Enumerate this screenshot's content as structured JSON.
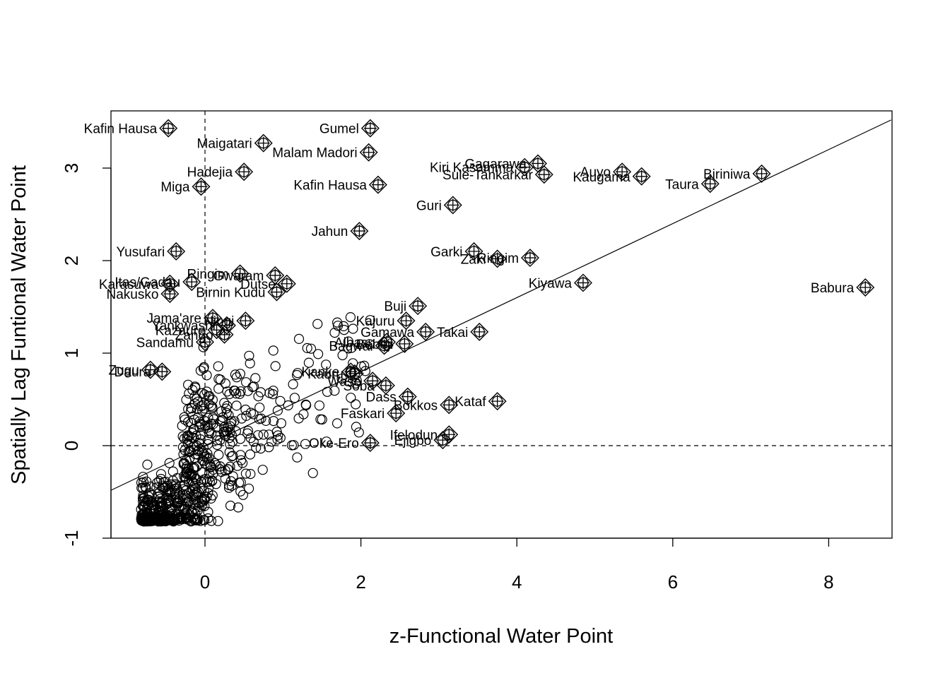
{
  "chart_data": {
    "type": "scatter",
    "title": "",
    "xlabel": "z-Functional Water Point",
    "ylabel": "Spatially Lag Funtional Water Point",
    "xlim": [
      -1.2,
      8.8
    ],
    "ylim": [
      -1.0,
      3.6
    ],
    "xticks": [
      "0",
      "2",
      "4",
      "6",
      "8"
    ],
    "yticks": [
      "-1",
      "0",
      "1",
      "2",
      "3"
    ],
    "reference_lines": {
      "vertical_x": 0,
      "horizontal_y": 0,
      "style": "dashed"
    },
    "regression_line": {
      "intercept": 0.0,
      "slope": 0.4
    },
    "influential_points": [
      {
        "name": "Babura",
        "x": 8.47,
        "y": 1.71
      },
      {
        "name": "Biriniwa",
        "x": 7.14,
        "y": 2.94
      },
      {
        "name": "Taura",
        "x": 6.48,
        "y": 2.83
      },
      {
        "name": "Kaugama",
        "x": 5.6,
        "y": 2.91
      },
      {
        "name": "Auyo",
        "x": 5.35,
        "y": 2.96
      },
      {
        "name": "Kiyawa",
        "x": 4.85,
        "y": 1.76
      },
      {
        "name": "Sule-Tankarkar",
        "x": 4.35,
        "y": 2.93
      },
      {
        "name": "Gagarawa",
        "x": 4.27,
        "y": 3.05
      },
      {
        "name": "Kiri Kasamma",
        "x": 4.1,
        "y": 3.01
      },
      {
        "name": "Ringim",
        "x": 4.17,
        "y": 2.03
      },
      {
        "name": "Zaki",
        "x": 3.75,
        "y": 2.02
      },
      {
        "name": "Garki",
        "x": 3.45,
        "y": 2.1
      },
      {
        "name": "Guri",
        "x": 3.18,
        "y": 2.6
      },
      {
        "name": "Kataf",
        "x": 3.75,
        "y": 0.48
      },
      {
        "name": "Takai",
        "x": 3.52,
        "y": 1.23
      },
      {
        "name": "Gumel",
        "x": 2.12,
        "y": 3.43
      },
      {
        "name": "Malam Madori",
        "x": 2.1,
        "y": 3.17
      },
      {
        "name": "Kafin Hausa",
        "x": 2.22,
        "y": 2.82
      },
      {
        "name": "Jahun",
        "x": 1.98,
        "y": 2.32
      },
      {
        "name": "Buji",
        "x": 2.73,
        "y": 1.51
      },
      {
        "name": "Kajuru",
        "x": 2.58,
        "y": 1.35
      },
      {
        "name": "Gamawa",
        "x": 2.83,
        "y": 1.23
      },
      {
        "name": "Albasu",
        "x": 2.33,
        "y": 1.12
      },
      {
        "name": "Bagwai",
        "x": 2.3,
        "y": 1.08
      },
      {
        "name": "Bebeji",
        "x": 2.56,
        "y": 1.1
      },
      {
        "name": "Kanke",
        "x": 1.87,
        "y": 0.8
      },
      {
        "name": "Kauru",
        "x": 1.92,
        "y": 0.78
      },
      {
        "name": "Wase",
        "x": 2.15,
        "y": 0.7
      },
      {
        "name": "Soba",
        "x": 2.32,
        "y": 0.65
      },
      {
        "name": "Dass",
        "x": 2.6,
        "y": 0.53
      },
      {
        "name": "Bokkos",
        "x": 3.13,
        "y": 0.44
      },
      {
        "name": "Faskari",
        "x": 2.45,
        "y": 0.35
      },
      {
        "name": "Ifelodun",
        "x": 3.13,
        "y": 0.12
      },
      {
        "name": "Ejigbo",
        "x": 3.05,
        "y": 0.06
      },
      {
        "name": "Oke-Ero",
        "x": 2.12,
        "y": 0.03
      },
      {
        "name": "Maigatari",
        "x": 0.75,
        "y": 3.27
      },
      {
        "name": "Hadejia",
        "x": 0.5,
        "y": 2.96
      },
      {
        "name": "Miga",
        "x": -0.05,
        "y": 2.8
      },
      {
        "name": "Birnin Kudu",
        "x": 0.92,
        "y": 1.66
      },
      {
        "name": "Ringim",
        "x": 0.45,
        "y": 1.86
      },
      {
        "name": "Dutse",
        "x": 1.05,
        "y": 1.75
      },
      {
        "name": "Gwaram",
        "x": 0.9,
        "y": 1.84
      },
      {
        "name": "Itas/Gadau",
        "x": -0.17,
        "y": 1.77
      },
      {
        "name": "Ningi",
        "x": 0.52,
        "y": 1.35
      },
      {
        "name": "Jama'are",
        "x": 0.1,
        "y": 1.38
      },
      {
        "name": "Zango",
        "x": 0.25,
        "y": 1.2
      },
      {
        "name": "Sandamu",
        "x": 0.0,
        "y": 1.12
      },
      {
        "name": "Yankwashi",
        "x": 0.28,
        "y": 1.3
      },
      {
        "name": "Kazaure",
        "x": 0.15,
        "y": 1.25
      },
      {
        "name": "Kafin Hausa",
        "x": -0.47,
        "y": 3.43
      },
      {
        "name": "Yusufari",
        "x": -0.37,
        "y": 2.1
      },
      {
        "name": "Karasuwa",
        "x": -0.45,
        "y": 1.75
      },
      {
        "name": "Nakusko",
        "x": -0.45,
        "y": 1.64
      },
      {
        "name": "Daura",
        "x": -0.55,
        "y": 0.8
      },
      {
        "name": "Zugu",
        "x": -0.7,
        "y": 0.82
      }
    ],
    "other_points_count": 700
  },
  "labels": [
    {
      "text": "Babura",
      "x": 8.47,
      "y": 1.71
    },
    {
      "text": "Biriniwa",
      "x": 7.14,
      "y": 2.94
    },
    {
      "text": "Taura",
      "x": 6.48,
      "y": 2.83
    },
    {
      "text": "Kaugama",
      "x": 5.6,
      "y": 2.91
    },
    {
      "text": "Auyo",
      "x": 5.35,
      "y": 2.96
    },
    {
      "text": "Kiyawa",
      "x": 4.85,
      "y": 1.76
    },
    {
      "text": "Sule-Tankarkar",
      "x": 4.35,
      "y": 2.93
    },
    {
      "text": "Gagarawa",
      "x": 4.27,
      "y": 3.05
    },
    {
      "text": "Kiri Kasamma",
      "x": 4.1,
      "y": 3.01
    },
    {
      "text": "Ringim",
      "x": 4.17,
      "y": 2.03
    },
    {
      "text": "Zaki",
      "x": 3.75,
      "y": 2.02
    },
    {
      "text": "Garki",
      "x": 3.45,
      "y": 2.1
    },
    {
      "text": "Guri",
      "x": 3.18,
      "y": 2.6
    },
    {
      "text": "Kataf",
      "x": 3.75,
      "y": 0.48
    },
    {
      "text": "Takai",
      "x": 3.52,
      "y": 1.23
    },
    {
      "text": "Gumel",
      "x": 2.12,
      "y": 3.43
    },
    {
      "text": "Malam Madori",
      "x": 2.1,
      "y": 3.17
    },
    {
      "text": "Kafin Hausa",
      "x": 2.22,
      "y": 2.82
    },
    {
      "text": "Jahun",
      "x": 1.98,
      "y": 2.32
    },
    {
      "text": "Buji",
      "x": 2.73,
      "y": 1.51
    },
    {
      "text": "Kajuru",
      "x": 2.58,
      "y": 1.35
    },
    {
      "text": "Gamawa",
      "x": 2.83,
      "y": 1.23
    },
    {
      "text": "Albasu",
      "x": 2.33,
      "y": 1.12
    },
    {
      "text": "Bagwai",
      "x": 2.3,
      "y": 1.08
    },
    {
      "text": "Bebeji",
      "x": 2.56,
      "y": 1.1
    },
    {
      "text": "Kanke",
      "x": 1.87,
      "y": 0.8
    },
    {
      "text": "Kauru",
      "x": 1.92,
      "y": 0.78
    },
    {
      "text": "Wase",
      "x": 2.15,
      "y": 0.7
    },
    {
      "text": "Soba",
      "x": 2.32,
      "y": 0.65
    },
    {
      "text": "Dass",
      "x": 2.6,
      "y": 0.53
    },
    {
      "text": "Bokkos",
      "x": 3.13,
      "y": 0.44
    },
    {
      "text": "Faskari",
      "x": 2.45,
      "y": 0.35
    },
    {
      "text": "Ifelodun",
      "x": 3.13,
      "y": 0.12
    },
    {
      "text": "Ejigbo",
      "x": 3.05,
      "y": 0.06
    },
    {
      "text": "Oke-Ero",
      "x": 2.12,
      "y": 0.03
    },
    {
      "text": "Maigatari",
      "x": 0.75,
      "y": 3.27
    },
    {
      "text": "Hadejia",
      "x": 0.5,
      "y": 2.96
    },
    {
      "text": "Miga",
      "x": -0.05,
      "y": 2.8
    },
    {
      "text": "Birnin Kudu",
      "x": 0.92,
      "y": 1.66
    },
    {
      "text": "Ringim",
      "x": 0.45,
      "y": 1.86
    },
    {
      "text": "Dutse",
      "x": 1.05,
      "y": 1.75
    },
    {
      "text": "Gwaram",
      "x": 0.9,
      "y": 1.84
    },
    {
      "text": "Itas/Gadau",
      "x": -0.17,
      "y": 1.77
    },
    {
      "text": "Ningi",
      "x": 0.52,
      "y": 1.35
    },
    {
      "text": "Jama'are",
      "x": 0.1,
      "y": 1.38
    },
    {
      "text": "Zango",
      "x": 0.25,
      "y": 1.2
    },
    {
      "text": "Sandamu",
      "x": 0.0,
      "y": 1.12
    },
    {
      "text": "Yankwashi",
      "x": 0.28,
      "y": 1.3
    },
    {
      "text": "Kazaure",
      "x": 0.15,
      "y": 1.25
    },
    {
      "text": "Kafin Hausa",
      "x": -0.47,
      "y": 3.43
    },
    {
      "text": "Yusufari",
      "x": -0.37,
      "y": 2.1
    },
    {
      "text": "Karasuwa",
      "x": -0.45,
      "y": 1.75
    },
    {
      "text": "Nakusko",
      "x": -0.45,
      "y": 1.64
    },
    {
      "text": "Daura",
      "x": -0.55,
      "y": 0.8
    },
    {
      "text": "Zugu",
      "x": -0.7,
      "y": 0.82
    }
  ]
}
